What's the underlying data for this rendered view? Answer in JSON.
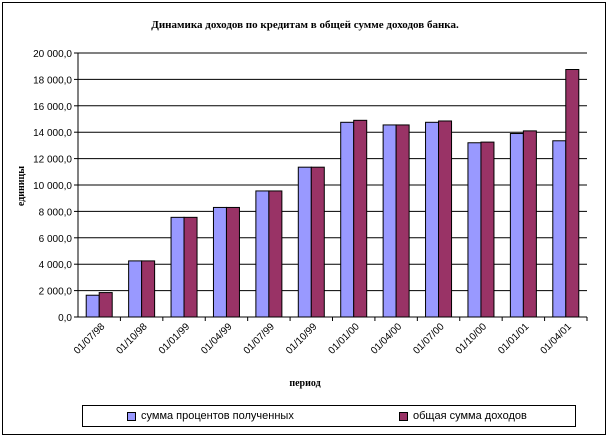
{
  "chart_data": {
    "type": "bar",
    "title": "Динамика доходов по кредитам в общей сумме доходов банка.",
    "xlabel": "период",
    "ylabel": "единицы",
    "ylim": [
      0,
      20000
    ],
    "yticks": [
      "0,0",
      "2 000,0",
      "4 000,0",
      "6 000,0",
      "8 000,0",
      "10 000,0",
      "12 000,0",
      "14 000,0",
      "16 000,0",
      "18 000,0",
      "20 000,0"
    ],
    "categories": [
      "01/07/98",
      "01/10/98",
      "01/01/99",
      "01/04/99",
      "01/07/99",
      "01/10/99",
      "01/01/00",
      "01/04/00",
      "01/07/00",
      "01/10/00",
      "01/01/01",
      "01/04/01"
    ],
    "series": [
      {
        "name": "сумма процентов полученных",
        "color": "#9999ff",
        "values": [
          1650,
          4250,
          7550,
          8300,
          9550,
          11350,
          14750,
          14550,
          14750,
          13200,
          13900,
          13350
        ]
      },
      {
        "name": "общая сумма доходов",
        "color": "#993366",
        "values": [
          1850,
          4250,
          7550,
          8300,
          9550,
          11350,
          14900,
          14550,
          14850,
          13250,
          14100,
          18750
        ]
      }
    ],
    "grid": true,
    "legend": "bottom"
  }
}
